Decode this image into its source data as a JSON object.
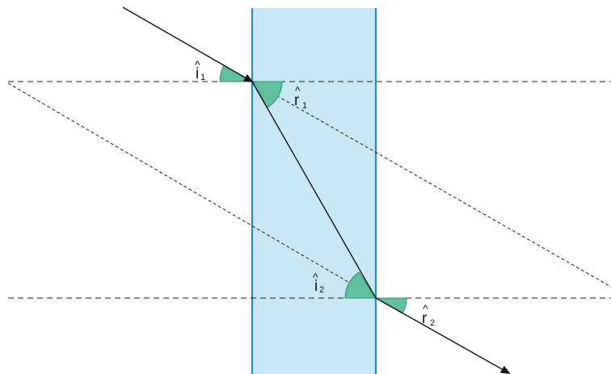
{
  "labels": {
    "i1": {
      "letter": "i",
      "hat": "^",
      "sub": "1"
    },
    "r1": {
      "letter": "r",
      "hat": "^",
      "sub": "1"
    },
    "i2": {
      "letter": "i",
      "hat": "^",
      "sub": "2"
    },
    "r2": {
      "letter": "r",
      "hat": "^",
      "sub": "2"
    }
  },
  "colors": {
    "glass": "#c9e8f7",
    "glass_edge": "#1d8fc7",
    "angle_fill": "#5fbf9e",
    "ray": "#111111"
  }
}
